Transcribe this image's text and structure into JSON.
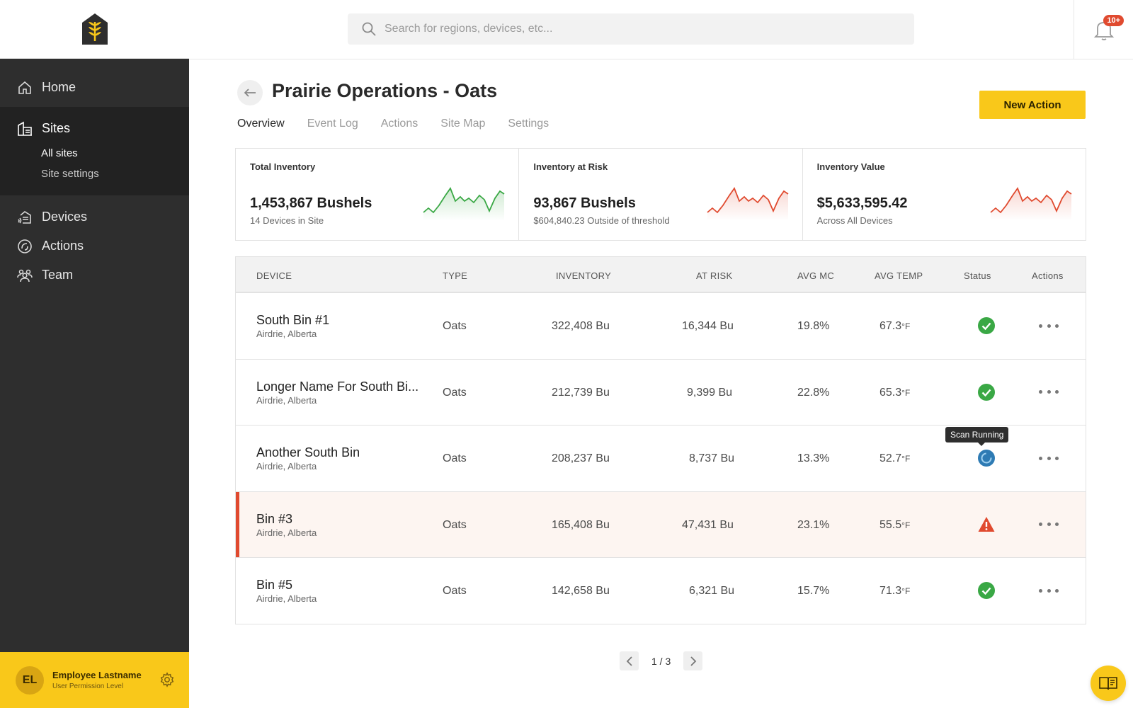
{
  "sidebar": {
    "home": "Home",
    "sites": "Sites",
    "sites_sub": [
      "All sites",
      "Site settings"
    ],
    "devices": "Devices",
    "actions": "Actions",
    "team": "Team"
  },
  "user": {
    "initials": "EL",
    "name": "Employee Lastname",
    "level": "User Permission Level"
  },
  "search": {
    "placeholder": "Search for regions, devices, etc..."
  },
  "notifications": {
    "badge": "10+"
  },
  "page": {
    "title": "Prairie Operations - Oats",
    "tabs": [
      "Overview",
      "Event Log",
      "Actions",
      "Site Map",
      "Settings"
    ],
    "active_tab": "Overview",
    "new_action": "New Action"
  },
  "cards": [
    {
      "label": "Total Inventory",
      "value": "1,453,867 Bushels",
      "sub": "14 Devices in Site",
      "color": "#3aa845"
    },
    {
      "label": "Inventory at Risk",
      "value": "93,867 Bushels",
      "sub": "$604,840.23 Outside of threshold",
      "color": "#e04a2f"
    },
    {
      "label": "Inventory Value",
      "value": "$5,633,595.42",
      "sub": "Across All Devices",
      "color": "#e04a2f"
    }
  ],
  "table": {
    "headers": [
      "DEVICE",
      "TYPE",
      "INVENTORY",
      "AT RISK",
      "AVG MC",
      "AVG TEMP",
      "Status",
      "Actions"
    ],
    "rows": [
      {
        "name": "South Bin #1",
        "loc": "Airdrie, Alberta",
        "type": "Oats",
        "inventory": "322,408 Bu",
        "risk": "16,344 Bu",
        "mc": "19.8%",
        "temp": "67.3",
        "unit": "°F",
        "status": "ok"
      },
      {
        "name": "Longer Name For South Bi...",
        "loc": "Airdrie, Alberta",
        "type": "Oats",
        "inventory": "212,739 Bu",
        "risk": "9,399 Bu",
        "mc": "22.8%",
        "temp": "65.3",
        "unit": "°F",
        "status": "ok"
      },
      {
        "name": "Another South Bin",
        "loc": "Airdrie, Alberta",
        "type": "Oats",
        "inventory": "208,237 Bu",
        "risk": "8,737 Bu",
        "mc": "13.3%",
        "temp": "52.7",
        "unit": "°F",
        "status": "scanning"
      },
      {
        "name": "Bin #3",
        "loc": "Airdrie, Alberta",
        "type": "Oats",
        "inventory": "165,408 Bu",
        "risk": "47,431 Bu",
        "mc": "23.1%",
        "temp": "55.5",
        "unit": "°F",
        "status": "alert"
      },
      {
        "name": "Bin #5",
        "loc": "Airdrie, Alberta",
        "type": "Oats",
        "inventory": "142,658 Bu",
        "risk": "6,321 Bu",
        "mc": "15.7%",
        "temp": "71.3",
        "unit": "°F",
        "status": "ok"
      }
    ],
    "tooltip": "Scan Running"
  },
  "pagination": {
    "text": "1 / 3"
  }
}
